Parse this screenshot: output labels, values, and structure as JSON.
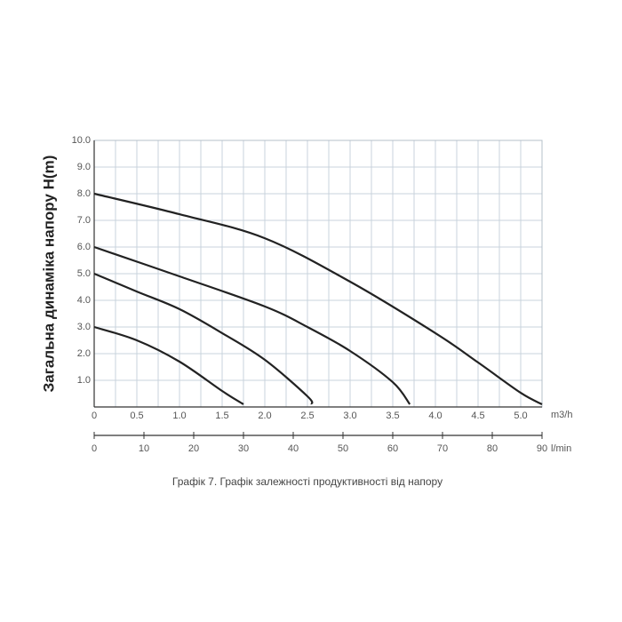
{
  "chart_data": {
    "type": "line",
    "y_label": "Загальна динаміка напору H(m)",
    "caption": "Графік 7. Графік залежності продуктивності від напору",
    "x_unit": "m3/h",
    "x2_unit": "l/min",
    "xlim": [
      0,
      5.25
    ],
    "ylim": [
      0,
      10
    ],
    "x2lim": [
      0,
      90
    ],
    "xticks": [
      0,
      0.5,
      {
        "value": 1,
        "label": "1.0"
      },
      1.5,
      {
        "value": 2,
        "label": "2.0"
      },
      2.5,
      {
        "value": 3,
        "label": "3.0"
      },
      3.5,
      {
        "value": 4,
        "label": "4.0"
      },
      4.5,
      {
        "value": 5,
        "label": "5.0"
      }
    ],
    "xminorticks": [
      0.25,
      0.75,
      1.25,
      1.75,
      2.25,
      2.75,
      3.25,
      3.75,
      4.25,
      4.75,
      5.25
    ],
    "yticks": [
      {
        "value": 1,
        "label": "1.0"
      },
      {
        "value": 2,
        "label": "2.0"
      },
      {
        "value": 3,
        "label": "3.0"
      },
      {
        "value": 4,
        "label": "4.0"
      },
      {
        "value": 5,
        "label": "5.0"
      },
      {
        "value": 6,
        "label": "6.0"
      },
      {
        "value": 7,
        "label": "7.0"
      },
      {
        "value": 8,
        "label": "8.0"
      },
      {
        "value": 9,
        "label": "9.0"
      },
      {
        "value": 10,
        "label": "10.0"
      }
    ],
    "x2ticks": [
      0,
      10,
      20,
      30,
      40,
      50,
      60,
      70,
      80,
      90
    ],
    "grid": true,
    "series": [
      {
        "color": "#222222",
        "x": [
          0,
          1,
          2,
          3,
          4,
          4.5,
          5,
          5.25
        ],
        "values": [
          8.0,
          7.23,
          6.33,
          4.7,
          2.77,
          1.67,
          0.53,
          0.1
        ]
      },
      {
        "color": "#222222",
        "x": [
          0,
          1,
          2,
          2.5,
          3,
          3.5,
          3.7
        ],
        "values": [
          6.0,
          4.9,
          3.77,
          3.0,
          2.1,
          0.93,
          0.1
        ]
      },
      {
        "color": "#222222",
        "x": [
          0,
          0.5,
          1,
          1.5,
          2,
          2.5,
          2.55
        ],
        "values": [
          5.0,
          4.33,
          3.67,
          2.77,
          1.77,
          0.4,
          0.1
        ]
      },
      {
        "color": "#222222",
        "x": [
          0,
          0.5,
          1,
          1.5,
          1.75
        ],
        "values": [
          3.0,
          2.5,
          1.7,
          0.6,
          0.1
        ]
      }
    ]
  }
}
